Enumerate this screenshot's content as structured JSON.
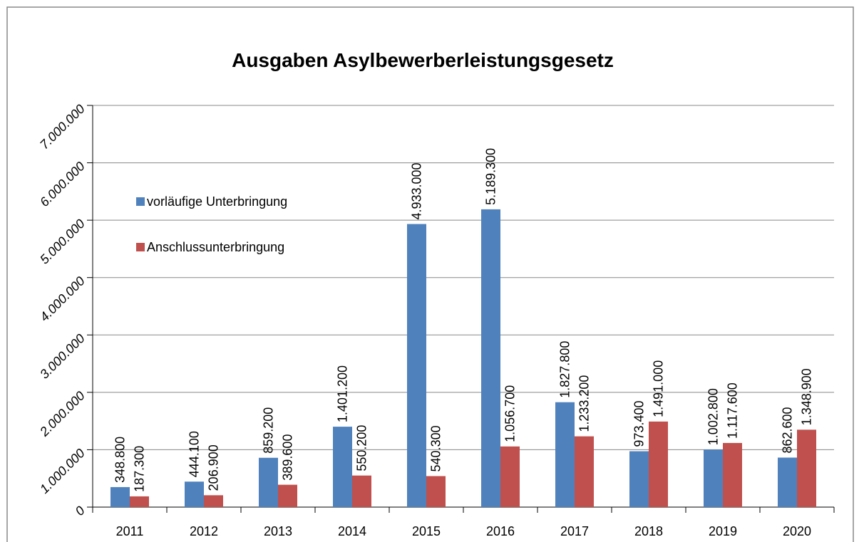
{
  "chart_data": {
    "type": "bar",
    "title": "Ausgaben Asylbewerberleistungsgesetz",
    "categories": [
      "2011",
      "2012",
      "2013",
      "2014",
      "2015",
      "2016",
      "2017",
      "2018",
      "2019",
      "2020"
    ],
    "series": [
      {
        "name": "vorläufige Unterbringung",
        "color": "#4f81bd",
        "values": [
          348800,
          444100,
          859200,
          1401200,
          4933000,
          5189300,
          1827800,
          973400,
          1002800,
          862600
        ],
        "value_labels": [
          "348.800",
          "444.100",
          "859.200",
          "1.401.200",
          "4.933.000",
          "5.189.300",
          "1.827.800",
          "973.400",
          "1.002.800",
          "862.600"
        ]
      },
      {
        "name": "Anschlussunterbringung",
        "color": "#c0504d",
        "values": [
          187300,
          206900,
          389600,
          550200,
          540300,
          1056700,
          1233200,
          1491000,
          1117600,
          1348900
        ],
        "value_labels": [
          "187.300",
          "206.900",
          "389.600",
          "550.200",
          "540.300",
          "1.056.700",
          "1.233.200",
          "1.491.000",
          "1.117.600",
          "1.348.900"
        ]
      }
    ],
    "ylim": [
      0,
      7000000
    ],
    "yticks": [
      0,
      {
        "value": 1000000,
        "label": "1.000.000"
      },
      {
        "value": 2000000,
        "label": "2.000.000"
      },
      {
        "value": 3000000,
        "label": "3.000.000"
      },
      {
        "value": 4000000,
        "label": "4.000.000"
      },
      {
        "value": 5000000,
        "label": "5.000.000"
      },
      {
        "value": 6000000,
        "label": "6.000.000"
      },
      {
        "value": 7000000,
        "label": "7.000.000"
      }
    ],
    "grid": true,
    "legend": "upper left"
  }
}
